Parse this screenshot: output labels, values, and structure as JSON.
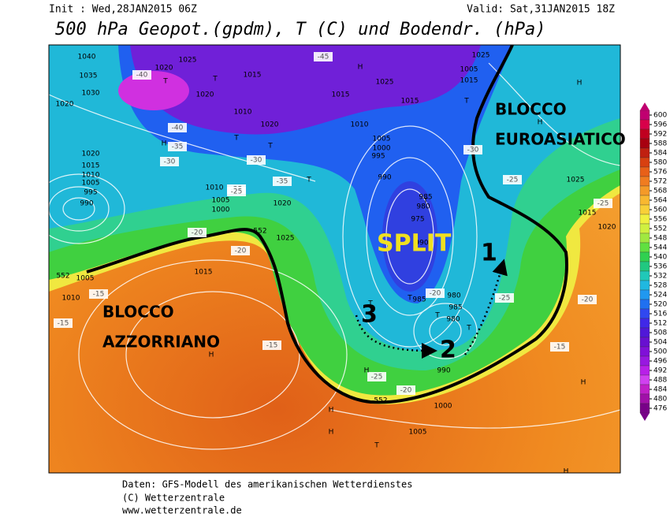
{
  "header": {
    "init": "Init : Wed,28JAN2015 06Z",
    "valid": "Valid: Sat,31JAN2015 18Z",
    "title": "500 hPa Geopot.(gpdm), T (C) und Bodendr. (hPa)"
  },
  "annotations": {
    "east_block": [
      "BLOCCO",
      "EUROASIATICO"
    ],
    "west_block": [
      "BLOCCO",
      "AZZORRIANO"
    ],
    "split": "SPLIT",
    "steps": [
      "1",
      "2",
      "3"
    ]
  },
  "map_labels": [
    "1040",
    "1035",
    "1030",
    "1020",
    "1025",
    "1020",
    "1015",
    "1020",
    "1010",
    "1020",
    "1015",
    "1025",
    "1015",
    "1010",
    "1005",
    "1000",
    "995",
    "990",
    "985",
    "980",
    "975",
    "990",
    "985",
    "980",
    "985",
    "980",
    "990",
    "1000",
    "1005",
    "1020",
    "1015",
    "1010",
    "1005",
    "995",
    "990",
    "1010",
    "1005",
    "1000",
    "1020",
    "1025",
    "1015",
    "1005",
    "1010",
    "1015",
    "1025",
    "1005",
    "1025",
    "1015",
    "1020",
    "552",
    "552",
    "552",
    "-45",
    "-40",
    "-35",
    "-30",
    "-25",
    "-20",
    "-15",
    "-25",
    "-30",
    "-20",
    "-25",
    "-15",
    "-15",
    "-20",
    "-25",
    "-35",
    "-40",
    "-30",
    "-25",
    "-20",
    "-15",
    "-25",
    "-20"
  ],
  "markers": [
    "H",
    "T",
    "T",
    "H",
    "T",
    "T",
    "T",
    "H",
    "H",
    "T",
    "H",
    "T",
    "T",
    "T",
    "T",
    "H",
    "H",
    "H",
    "T",
    "H",
    "T",
    "H"
  ],
  "legend": {
    "ticks": [
      600,
      596,
      592,
      588,
      584,
      580,
      576,
      572,
      568,
      564,
      560,
      556,
      552,
      548,
      544,
      540,
      536,
      532,
      528,
      524,
      520,
      516,
      512,
      508,
      504,
      500,
      496,
      492,
      488,
      484,
      480,
      476
    ]
  },
  "footer": [
    "Daten: GFS-Modell des amerikanischen Wetterdienstes",
    "(C) Wetterzentrale",
    "www.wetterzentrale.de"
  ]
}
